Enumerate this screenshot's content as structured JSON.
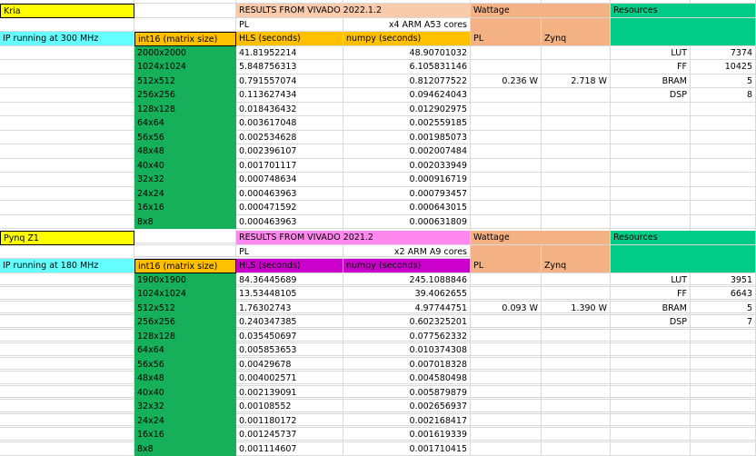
{
  "colors": {
    "gridline": "#d9d9d9",
    "title_yellow": "#ffff00",
    "cyan": "#66ffff",
    "orange": "#ffc000",
    "peach": "#f8cbad",
    "salmon": "#f4b183",
    "teal": "#00cc88",
    "green": "#17b05a",
    "pink": "#ff88ee",
    "magenta": "#cc00cc"
  },
  "blocks": [
    {
      "device": "Kria",
      "ip_note": "IP running at 300 MHz",
      "size_header": "int16 (matrix size)",
      "results_title": "RESULTS FROM VIVADO 2022.1.2",
      "pl_label": "PL",
      "cores_label": "x4 ARM A53 cores",
      "hls_header": "HLS (seconds)",
      "numpy_header": "numpy (seconds)",
      "wattage_title": "Wattage",
      "wattage_pl_label": "PL",
      "wattage_zynq_label": "Zynq",
      "pl_watt": "0.236 W",
      "zynq_watt": "2.718 W",
      "resources_title": "Resources",
      "resources": [
        {
          "name": "LUT",
          "value": "7374"
        },
        {
          "name": "FF",
          "value": "10425"
        },
        {
          "name": "BRAM",
          "value": "5"
        },
        {
          "name": "DSP",
          "value": "8"
        }
      ],
      "rows": [
        {
          "size": "2000x2000",
          "hls": "41.81952214",
          "numpy": "48.90701032"
        },
        {
          "size": "1024x1024",
          "hls": "5.848756313",
          "numpy": "6.105831146"
        },
        {
          "size": "512x512",
          "hls": "0.791557074",
          "numpy": "0.812077522"
        },
        {
          "size": "256x256",
          "hls": "0.113627434",
          "numpy": "0.094624043"
        },
        {
          "size": "128x128",
          "hls": "0.018436432",
          "numpy": "0.012902975"
        },
        {
          "size": "64x64",
          "hls": "0.003617048",
          "numpy": "0.002559185"
        },
        {
          "size": "56x56",
          "hls": "0.002534628",
          "numpy": "0.001985073"
        },
        {
          "size": "48x48",
          "hls": "0.002396107",
          "numpy": "0.002007484"
        },
        {
          "size": "40x40",
          "hls": "0.001701117",
          "numpy": "0.002033949"
        },
        {
          "size": "32x32",
          "hls": "0.000748634",
          "numpy": "0.000916719"
        },
        {
          "size": "24x24",
          "hls": "0.000463963",
          "numpy": "0.000793457"
        },
        {
          "size": "16x16",
          "hls": "0.000471592",
          "numpy": "0.000643015"
        },
        {
          "size": "8x8",
          "hls": "0.000463963",
          "numpy": "0.000631809"
        }
      ]
    },
    {
      "device": "Pynq Z1",
      "ip_note": "IP running at 180 MHz",
      "size_header": "int16 (matrix size)",
      "results_title": "RESULTS FROM VIVADO 2021.2",
      "pl_label": "PL",
      "cores_label": "x2 ARM A9 cores",
      "hls_header": "HLS (seconds)",
      "numpy_header": "numpy (seconds)",
      "wattage_title": "Wattage",
      "wattage_pl_label": "PL",
      "wattage_zynq_label": "Zynq",
      "pl_watt": "0.093 W",
      "zynq_watt": "1.390 W",
      "resources_title": "Resources",
      "resources": [
        {
          "name": "LUT",
          "value": "3951"
        },
        {
          "name": "FF",
          "value": "6643"
        },
        {
          "name": "BRAM",
          "value": "5"
        },
        {
          "name": "DSP",
          "value": "7"
        }
      ],
      "rows": [
        {
          "size": "1900x1900",
          "hls": "84.36445689",
          "numpy": "245.1088846"
        },
        {
          "size": "1024x1024",
          "hls": "13.53448105",
          "numpy": "39.4062655"
        },
        {
          "size": "512x512",
          "hls": "1.76302743",
          "numpy": "4.97744751"
        },
        {
          "size": "256x256",
          "hls": "0.240347385",
          "numpy": "0.602325201"
        },
        {
          "size": "128x128",
          "hls": "0.035450697",
          "numpy": "0.077562332"
        },
        {
          "size": "64x64",
          "hls": "0.005853653",
          "numpy": "0.010374308"
        },
        {
          "size": "56x56",
          "hls": "0.00429678",
          "numpy": "0.007018328"
        },
        {
          "size": "48x48",
          "hls": "0.004002571",
          "numpy": "0.004580498"
        },
        {
          "size": "40x40",
          "hls": "0.002139091",
          "numpy": "0.005879879"
        },
        {
          "size": "32x32",
          "hls": "0.00108552",
          "numpy": "0.002656937"
        },
        {
          "size": "24x24",
          "hls": "0.001180172",
          "numpy": "0.002168417"
        },
        {
          "size": "16x16",
          "hls": "0.001245737",
          "numpy": "0.001619339"
        },
        {
          "size": "8x8",
          "hls": "0.001114607",
          "numpy": "0.001710415"
        }
      ]
    }
  ]
}
